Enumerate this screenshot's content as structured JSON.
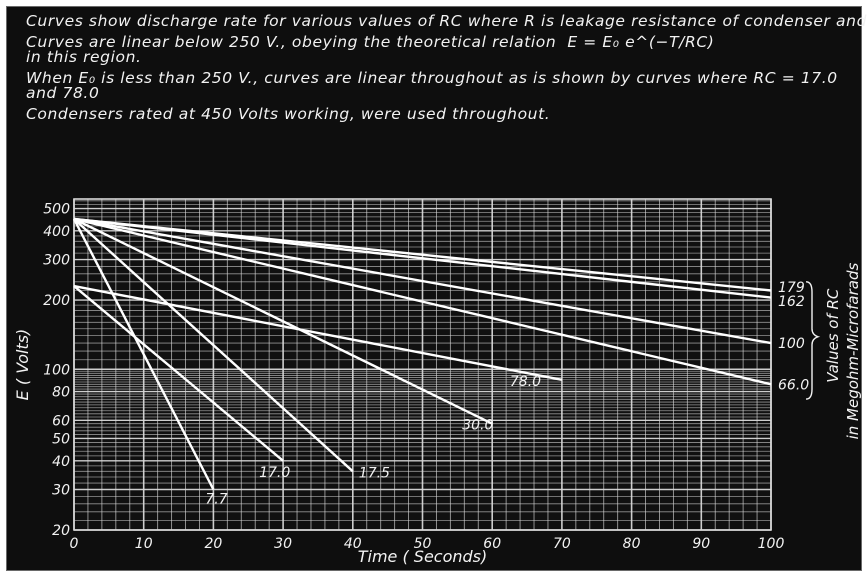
{
  "notes": [
    "Curves show discharge rate for various values of RC where R is leakage resistance of condenser and load resistance in parallel.",
    "Curves are linear below 250 V., obeying the theoretical relation",
    "in this region.",
    "When E₀ is less than 250 V., curves are linear throughout as is shown by curves where RC = 17.0 and 78.0",
    "Condensers rated at 450 Volts working, were used throughout."
  ],
  "equation": "E = E₀ e^(−T/RC)",
  "colors": {
    "background": "#0e0e0e",
    "grid": "#d8d8d8",
    "curve": "#ffffff",
    "text": "#f2f2f2"
  },
  "chart_data": {
    "type": "line",
    "title": "",
    "xlabel": "Time ( Seconds)",
    "ylabel": "E ( Volts)",
    "right_label": [
      "Values of RC",
      "in Megohm-Microfarads"
    ],
    "xlim": [
      0,
      100
    ],
    "ylim": [
      20,
      550
    ],
    "y_scale": "log",
    "grid": true,
    "x_ticks": [
      0,
      10,
      20,
      30,
      40,
      50,
      60,
      70,
      80,
      90,
      100
    ],
    "y_ticks": [
      20,
      30,
      40,
      50,
      60,
      80,
      100,
      200,
      300,
      400,
      500
    ],
    "series": [
      {
        "name": "7.7",
        "x": [
          0,
          20
        ],
        "y": [
          450,
          30
        ]
      },
      {
        "name": "17.0",
        "x": [
          0,
          30
        ],
        "y": [
          230,
          40
        ]
      },
      {
        "name": "17.5",
        "x": [
          0,
          40
        ],
        "y": [
          450,
          36
        ]
      },
      {
        "name": "30.0",
        "x": [
          0,
          60
        ],
        "y": [
          450,
          58
        ]
      },
      {
        "name": "78.0",
        "x": [
          0,
          70
        ],
        "y": [
          230,
          90
        ]
      },
      {
        "name": "66.0",
        "x": [
          0,
          100
        ],
        "y": [
          450,
          86
        ]
      },
      {
        "name": "100",
        "x": [
          0,
          100
        ],
        "y": [
          450,
          130
        ]
      },
      {
        "name": "162",
        "x": [
          0,
          100
        ],
        "y": [
          450,
          205
        ]
      },
      {
        "name": "179",
        "x": [
          0,
          100
        ],
        "y": [
          450,
          220
        ]
      }
    ]
  }
}
